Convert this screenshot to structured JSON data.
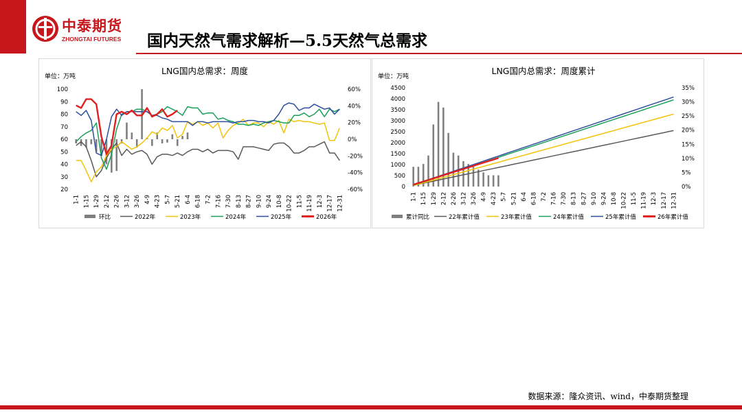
{
  "header": {
    "logo_cn": "中泰期货",
    "logo_en": "ZHONGTAI FUTURES",
    "title": "国内天然气需求解析—5.5天然气总需求"
  },
  "footer": {
    "source": "数据来源：隆众资讯、wind，中泰期货整理"
  },
  "colors": {
    "brand": "#c8161d",
    "s2022": "#595959",
    "s2023": "#f2c40c",
    "s2024": "#1aa05a",
    "s2025": "#2e4f9b",
    "s2026": "#e02020",
    "bar": "#7f7f7f"
  },
  "chart_data": [
    {
      "type": "line",
      "title": "LNG国内总需求：周度",
      "unit_label": "单位：万吨",
      "x_tick_labels": [
        "1-1",
        "1-15",
        "1-29",
        "2-12",
        "2-26",
        "3-12",
        "3-26",
        "4-9",
        "4-23",
        "5-7",
        "5-21",
        "6-4",
        "6-18",
        "7-2",
        "7-16",
        "7-30",
        "8-13",
        "8-27",
        "9-10",
        "9-24",
        "10-8",
        "10-22",
        "11-5",
        "11-19",
        "12-3",
        "12-17",
        "12-31"
      ],
      "ylim": [
        20,
        100
      ],
      "y_ticks": [
        "100",
        "90",
        "80",
        "70",
        "60",
        "50",
        "40",
        "30",
        "20"
      ],
      "y2lim": [
        -60,
        60
      ],
      "y2_ticks": [
        "60%",
        "40%",
        "20%",
        "0%",
        "-20%",
        "-40%",
        "-60%"
      ],
      "bars": {
        "name": "环比",
        "unit": "%",
        "values": [
          -5,
          -8,
          -10,
          -6,
          -15,
          -20,
          -30,
          -40,
          -38,
          -5,
          20,
          8,
          -10,
          60,
          2,
          -8,
          8,
          -5,
          -4,
          6,
          -8,
          4,
          8
        ]
      },
      "series": [
        {
          "name": "2022年",
          "values": [
            55,
            58,
            54,
            43,
            30,
            35,
            45,
            52,
            57,
            47,
            52,
            48,
            50,
            51,
            48,
            40,
            46,
            48,
            48,
            47,
            49,
            47,
            50,
            52,
            52,
            50,
            52,
            49,
            51,
            51,
            51,
            50,
            44,
            54,
            54,
            54,
            53,
            52,
            51,
            56,
            57,
            57,
            54,
            49,
            49,
            51,
            54,
            54,
            56,
            58,
            49,
            49,
            43
          ]
        },
        {
          "name": "2023年",
          "values": [
            43,
            43,
            35,
            26,
            34,
            38,
            47,
            52,
            54,
            58,
            55,
            52,
            54,
            57,
            61,
            66,
            64,
            69,
            67,
            71,
            61,
            64,
            74,
            72,
            74,
            71,
            73,
            69,
            73,
            61,
            67,
            71,
            73,
            76,
            71,
            73,
            73,
            70,
            74,
            72,
            75,
            65,
            76,
            74,
            75,
            74,
            74,
            73,
            72,
            73,
            59,
            59,
            69
          ]
        },
        {
          "name": "2024年",
          "values": [
            58,
            62,
            65,
            67,
            73,
            45,
            36,
            48,
            68,
            80,
            82,
            82,
            84,
            84,
            82,
            79,
            80,
            82,
            86,
            84,
            82,
            79,
            86,
            85,
            85,
            80,
            81,
            81,
            76,
            77,
            75,
            74,
            72,
            72,
            71,
            72,
            71,
            73,
            74,
            75,
            74,
            73,
            73,
            79,
            79,
            81,
            78,
            80,
            84,
            78,
            84,
            82,
            84
          ]
        },
        {
          "name": "2025年",
          "values": [
            82,
            79,
            83,
            75,
            49,
            47,
            60,
            78,
            84,
            79,
            82,
            82,
            82,
            82,
            82,
            79,
            79,
            77,
            76,
            74,
            74,
            74,
            74,
            71,
            74,
            74,
            73,
            74,
            74,
            74,
            74,
            73,
            74,
            74,
            75,
            75,
            74,
            74,
            73,
            75,
            80,
            87,
            89,
            88,
            83,
            85,
            85,
            88,
            86,
            84,
            85,
            80,
            84
          ]
        },
        {
          "name": "2026年",
          "values": [
            87,
            85,
            92,
            92,
            88,
            62,
            48,
            55,
            80,
            82,
            80,
            83,
            79,
            79,
            85,
            78,
            80,
            84,
            78,
            80,
            83
          ]
        }
      ],
      "legend": [
        {
          "label": "环比",
          "kind": "bar",
          "color_key": "bar"
        },
        {
          "label": "2022年",
          "kind": "line",
          "color_key": "s2022"
        },
        {
          "label": "2023年",
          "kind": "line",
          "color_key": "s2023"
        },
        {
          "label": "2024年",
          "kind": "line",
          "color_key": "s2024"
        },
        {
          "label": "2025年",
          "kind": "line",
          "color_key": "s2025"
        },
        {
          "label": "2026年",
          "kind": "line",
          "color_key": "s2026"
        }
      ]
    },
    {
      "type": "line",
      "title": "LNG国内总需求：周度累计",
      "unit_label": "单位：万吨",
      "x_tick_labels": [
        "1-1",
        "1-15",
        "1-29",
        "2-12",
        "2-26",
        "3-12",
        "3-26",
        "4-9",
        "4-23",
        "5-7",
        "5-21",
        "6-4",
        "6-18",
        "7-2",
        "7-16",
        "7-30",
        "8-13",
        "8-27",
        "9-10",
        "9-24",
        "10-8",
        "10-22",
        "11-5",
        "11-19",
        "12-3",
        "12-17",
        "12-31"
      ],
      "ylim": [
        0,
        4500
      ],
      "y_ticks": [
        "4500",
        "4000",
        "3500",
        "3000",
        "2500",
        "2000",
        "1500",
        "1000",
        "500",
        "0"
      ],
      "y2lim": [
        0,
        35
      ],
      "y2_ticks": [
        "35%",
        "30%",
        "25%",
        "20%",
        "15%",
        "10%",
        "5%",
        "0%"
      ],
      "bars": {
        "name": "累计同比",
        "unit": "%",
        "values": [
          7,
          7,
          8,
          11,
          22,
          30,
          28,
          19,
          12,
          11,
          9,
          8,
          7,
          6,
          5,
          4,
          4,
          4
        ]
      },
      "series": [
        {
          "name": "22年累计值",
          "start": 55,
          "end": 2550,
          "weeks": 53
        },
        {
          "name": "23年累计值",
          "start": 43,
          "end": 3300,
          "weeks": 53
        },
        {
          "name": "24年累计值",
          "start": 58,
          "end": 3950,
          "weeks": 53
        },
        {
          "name": "25年累计值",
          "start": 82,
          "end": 4080,
          "weeks": 53
        },
        {
          "name": "26年累计值",
          "start": 87,
          "end": 1300,
          "weeks": 18
        }
      ],
      "legend": [
        {
          "label": "累计同比",
          "kind": "bar",
          "color_key": "bar"
        },
        {
          "label": "22年累计值",
          "kind": "line",
          "color_key": "s2022"
        },
        {
          "label": "23年累计值",
          "kind": "line",
          "color_key": "s2023"
        },
        {
          "label": "24年累计值",
          "kind": "line",
          "color_key": "s2024"
        },
        {
          "label": "25年累计值",
          "kind": "line",
          "color_key": "s2025"
        },
        {
          "label": "26年累计值",
          "kind": "line",
          "color_key": "s2026"
        }
      ]
    }
  ]
}
